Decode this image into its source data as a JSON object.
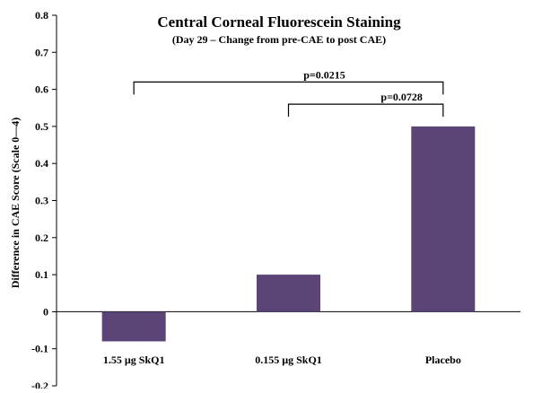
{
  "chart_data": {
    "type": "bar",
    "title": "Central Corneal Fluorescein Staining",
    "subtitle": "(Day 29 – Change from pre-CAE to post CAE)",
    "xlabel": "",
    "ylabel": "Difference in CAE Score (Scale 0—4)",
    "categories": [
      "1.55 µg SkQ1",
      "0.155 µg SkQ1",
      "Placebo"
    ],
    "values": [
      -0.08,
      0.1,
      0.5
    ],
    "ylim": [
      -0.2,
      0.8
    ],
    "yticks": [
      -0.2,
      -0.1,
      0,
      0.1,
      0.2,
      0.3,
      0.4,
      0.5,
      0.6,
      0.7,
      0.8
    ],
    "ytick_labels": [
      "-0.2",
      "-0.1",
      "0",
      "0.1",
      "0.2",
      "0.3",
      "0.4",
      "0.5",
      "0.6",
      "0.7",
      "0.8"
    ],
    "bar_color": "#5b4577",
    "grid": false,
    "annotations": [
      {
        "label": "p=0.0215",
        "from_category": 0,
        "to_category": 2,
        "level": 0.62
      },
      {
        "label": "p=0.0728",
        "from_category": 1,
        "to_category": 2,
        "level": 0.56
      }
    ]
  }
}
